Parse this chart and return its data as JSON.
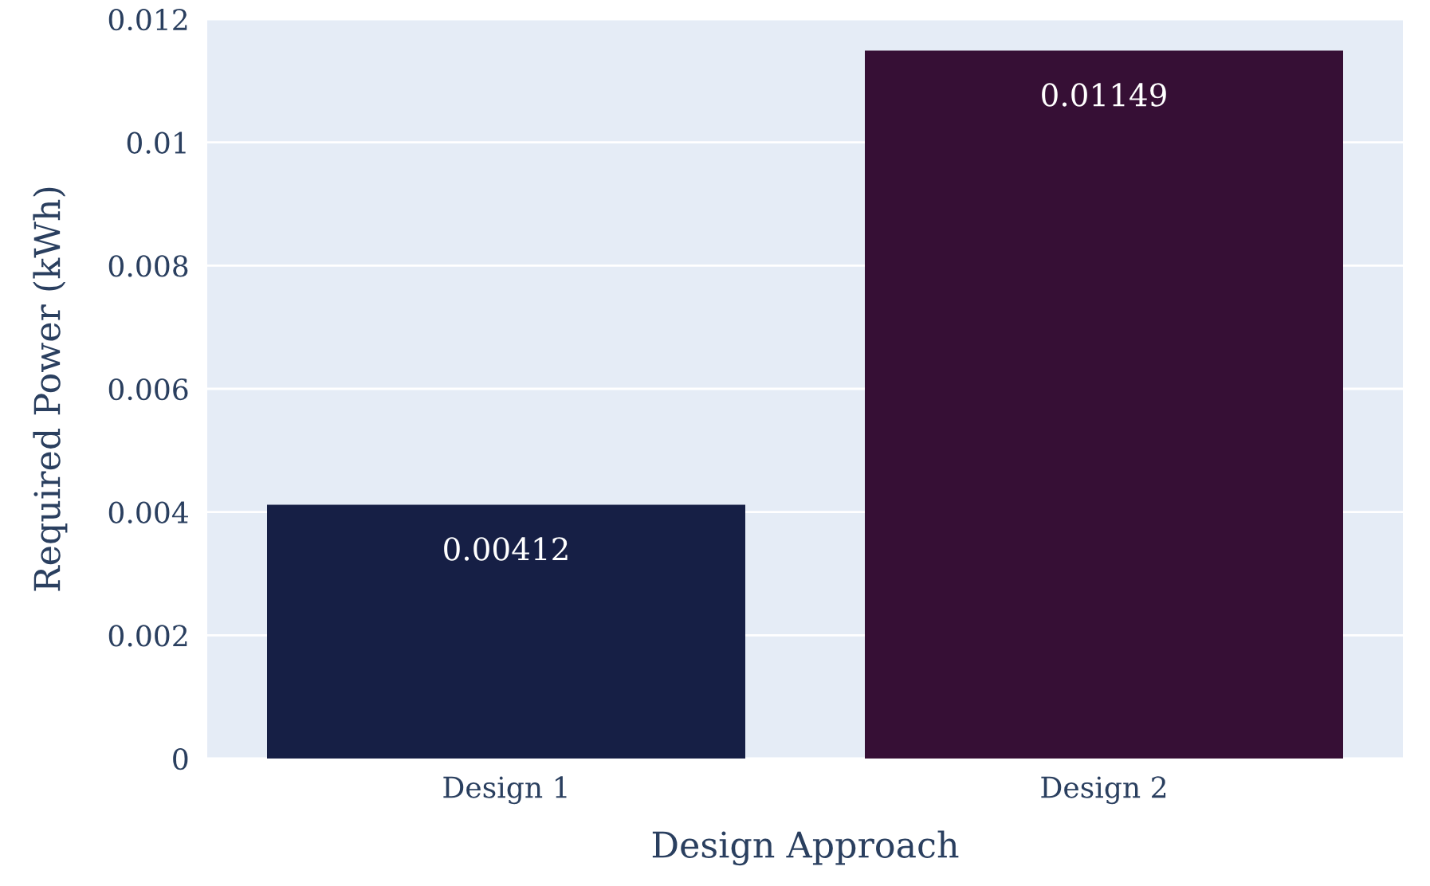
{
  "chart_data": {
    "type": "bar",
    "xlabel": "Design Approach",
    "ylabel": "Required Power (kWh)",
    "categories": [
      "Design 1",
      "Design 2"
    ],
    "values": [
      0.00412,
      0.01149
    ],
    "colors": [
      "#161f45",
      "#360f35"
    ],
    "ylim": [
      0,
      0.012
    ],
    "yticks": [
      {
        "value": 0,
        "label": "0"
      },
      0.002,
      0.004,
      0.006,
      0.008,
      {
        "value": 0.01,
        "label": "0.01"
      },
      0.012
    ],
    "grid": "y",
    "data_labels": true
  }
}
